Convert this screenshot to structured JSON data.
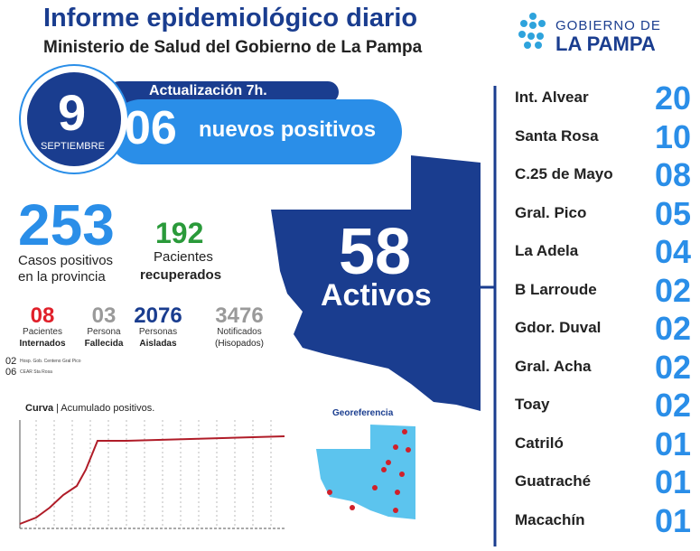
{
  "header": {
    "title": "Informe epidemiológico diario",
    "subtitle": "Ministerio de Salud del Gobierno de La Pampa"
  },
  "logo": {
    "line1": "GOBIERNO DE",
    "line2": "LA PAMPA"
  },
  "date": {
    "day": "9",
    "month": "SEPTIEMBRE"
  },
  "update": "Actualización 7h.",
  "new_positives": {
    "number": "06",
    "label": "nuevos positivos"
  },
  "active": {
    "number": "58",
    "label": "Activos"
  },
  "total": {
    "number": "253",
    "line1": "Casos positivos",
    "line2": "en la provincia"
  },
  "recovered": {
    "number": "192",
    "line1": "Pacientes",
    "line2": "recuperados"
  },
  "small_stats": [
    {
      "number": "08",
      "line1": "Pacientes",
      "line2": "Internados",
      "color": "#e0202a"
    },
    {
      "number": "03",
      "line1": "Persona",
      "line2": "Fallecida",
      "color": "#9a9a9a"
    },
    {
      "number": "2076",
      "line1": "Personas",
      "line2": "Aisladas",
      "color": "#1a3d8f"
    },
    {
      "number": "3476",
      "line1": "Notificados",
      "line2": "(Hisopados)",
      "color": "#9a9a9a"
    }
  ],
  "hospital": [
    {
      "number": "02",
      "label": "Hosp. Gob. Centeno Gral Pico"
    },
    {
      "number": "06",
      "label": "CEAR Sta Rosa"
    }
  ],
  "curve": {
    "title": "Curva",
    "subtitle": "| Acumulado positivos."
  },
  "georef": "Georeferencia",
  "localities": [
    {
      "name": "Int. Alvear",
      "count": "20"
    },
    {
      "name": "Santa Rosa",
      "count": "10"
    },
    {
      "name": "C.25 de Mayo",
      "count": "08"
    },
    {
      "name": "Gral. Pico",
      "count": "05"
    },
    {
      "name": "La Adela",
      "count": "04"
    },
    {
      "name": "B Larroude",
      "count": "02"
    },
    {
      "name": "Gdor. Duval",
      "count": "02"
    },
    {
      "name": "Gral. Acha",
      "count": "02"
    },
    {
      "name": "Toay",
      "count": "02"
    },
    {
      "name": "Catriló",
      "count": "01"
    },
    {
      "name": "Guatraché",
      "count": "01"
    },
    {
      "name": "Macachín",
      "count": "01"
    }
  ]
}
